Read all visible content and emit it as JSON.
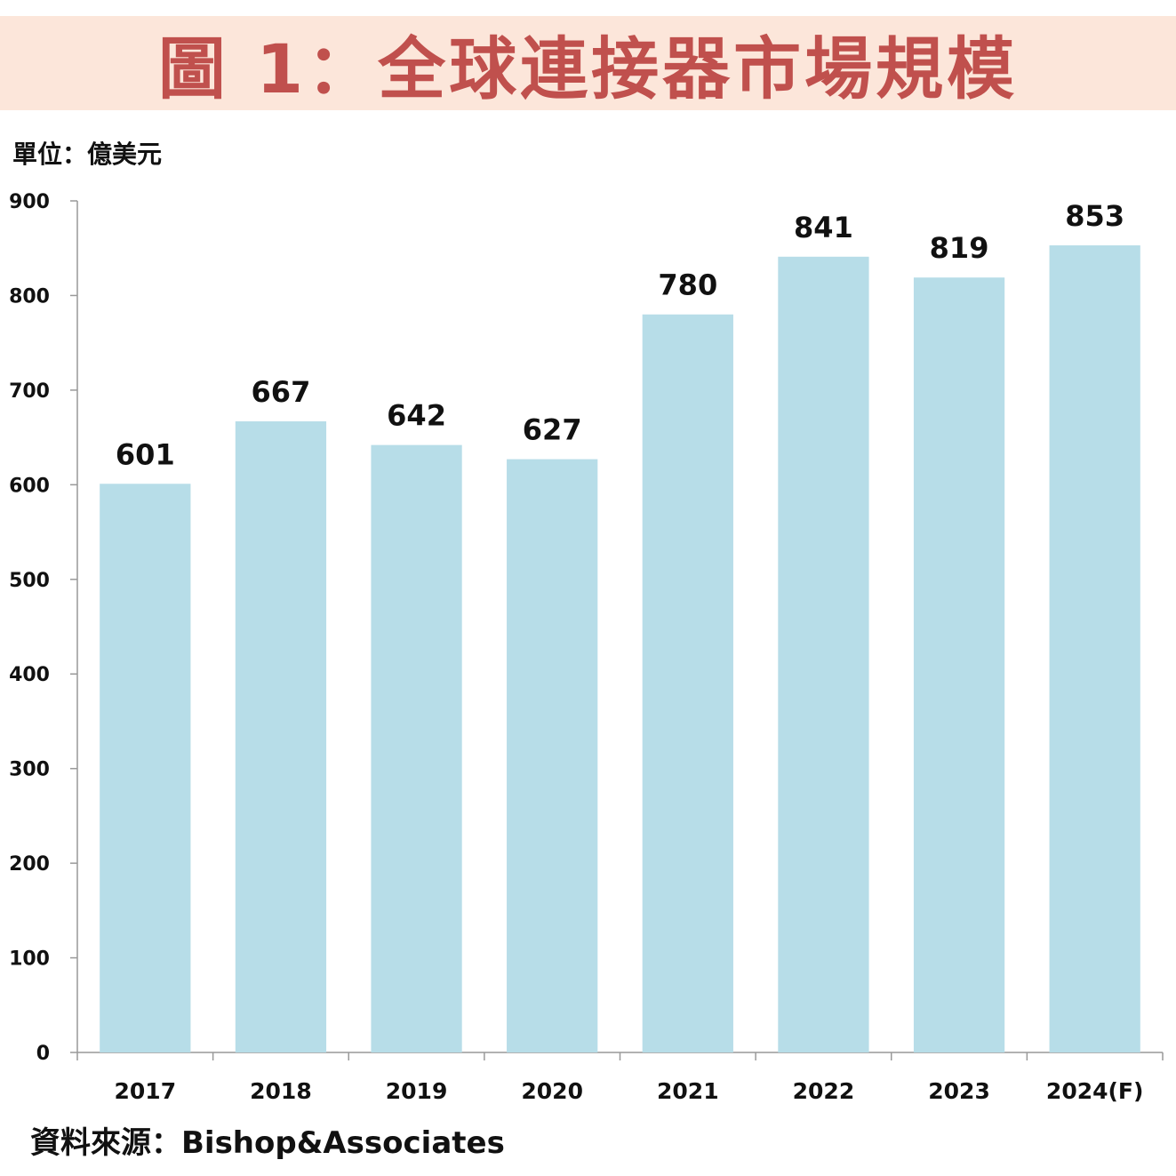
{
  "header": {
    "title": "圖 1：全球連接器市場規模"
  },
  "unit_label": "單位：億美元",
  "source_label": "資料來源：Bishop&Associates",
  "colors": {
    "bar": "#b7dde8",
    "title": "#c0504d",
    "title_band": "#fce6da",
    "axis": "#999999"
  },
  "chart_data": {
    "type": "bar",
    "title": "圖 1：全球連接器市場規模",
    "ylabel": "單位：億美元",
    "categories": [
      "2017",
      "2018",
      "2019",
      "2020",
      "2021",
      "2022",
      "2023",
      "2024(F)"
    ],
    "values": [
      601,
      667,
      642,
      627,
      780,
      841,
      819,
      853
    ],
    "ylim": [
      0,
      900
    ],
    "yticks": [
      "0",
      "100",
      "200",
      "300",
      "400",
      "500",
      "600",
      "700",
      "800",
      "900"
    ],
    "grid": false,
    "legend": "none"
  }
}
